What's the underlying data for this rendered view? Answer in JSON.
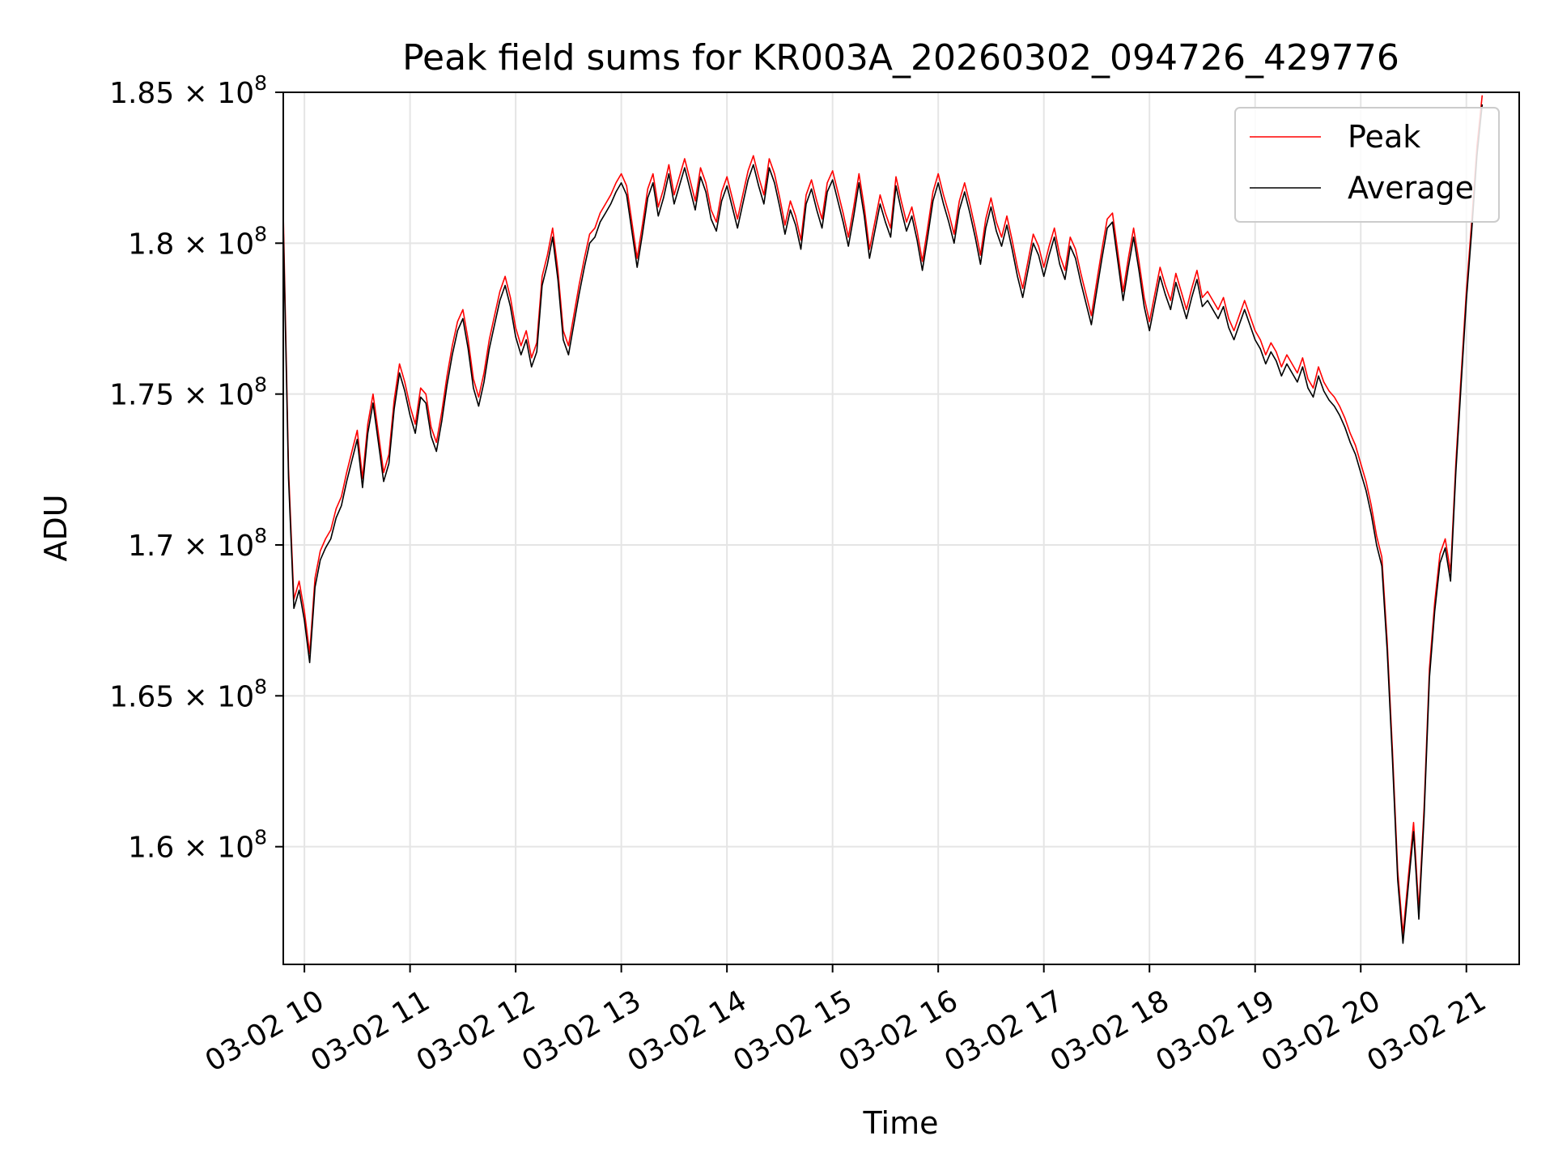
{
  "chart_data": {
    "type": "line",
    "title": "Peak field sums for KR003A_20260302_094726_429776",
    "xlabel": "Time",
    "ylabel": "ADU",
    "xlim": [
      9.8,
      21.5
    ],
    "ylim": [
      156100000,
      185000000
    ],
    "x_ticks": [
      {
        "value": 10,
        "label": "03-02 10"
      },
      {
        "value": 11,
        "label": "03-02 11"
      },
      {
        "value": 12,
        "label": "03-02 12"
      },
      {
        "value": 13,
        "label": "03-02 13"
      },
      {
        "value": 14,
        "label": "03-02 14"
      },
      {
        "value": 15,
        "label": "03-02 15"
      },
      {
        "value": 16,
        "label": "03-02 16"
      },
      {
        "value": 17,
        "label": "03-02 17"
      },
      {
        "value": 18,
        "label": "03-02 18"
      },
      {
        "value": 19,
        "label": "03-02 19"
      },
      {
        "value": 20,
        "label": "03-02 20"
      },
      {
        "value": 21,
        "label": "03-02 21"
      }
    ],
    "y_ticks": [
      {
        "value": 160000000,
        "mantissa": "1.6",
        "exponent": "8"
      },
      {
        "value": 165000000,
        "mantissa": "1.65",
        "exponent": "8"
      },
      {
        "value": 170000000,
        "mantissa": "1.7",
        "exponent": "8"
      },
      {
        "value": 175000000,
        "mantissa": "1.75",
        "exponent": "8"
      },
      {
        "value": 180000000,
        "mantissa": "1.8",
        "exponent": "8"
      },
      {
        "value": 185000000,
        "mantissa": "1.85",
        "exponent": "8"
      }
    ],
    "grid": true,
    "legend_position": "top-right",
    "series": [
      {
        "name": "Peak",
        "color": "#ff0000",
        "x_start": 9.8,
        "x_step": 0.05,
        "values": [
          181000000,
          172500000,
          168200000,
          168800000,
          167800000,
          166400000,
          168900000,
          169800000,
          170200000,
          170500000,
          171200000,
          171600000,
          172400000,
          173100000,
          173800000,
          172200000,
          174000000,
          175000000,
          173700000,
          172400000,
          173000000,
          174800000,
          176000000,
          175400000,
          174600000,
          174000000,
          175200000,
          175000000,
          173900000,
          173400000,
          174400000,
          175600000,
          176600000,
          177400000,
          177800000,
          176800000,
          175500000,
          174900000,
          175700000,
          176800000,
          177600000,
          178400000,
          178900000,
          178200000,
          177200000,
          176600000,
          177100000,
          176200000,
          176700000,
          178900000,
          179600000,
          180500000,
          179100000,
          177100000,
          176600000,
          177600000,
          178600000,
          179500000,
          180300000,
          180500000,
          181000000,
          181300000,
          181600000,
          182000000,
          182300000,
          181900000,
          180700000,
          179500000,
          180600000,
          181800000,
          182300000,
          181200000,
          181800000,
          182600000,
          181600000,
          182200000,
          182800000,
          182100000,
          181400000,
          182500000,
          182000000,
          181100000,
          180700000,
          181700000,
          182200000,
          181500000,
          180800000,
          181600000,
          182400000,
          182900000,
          182200000,
          181600000,
          182800000,
          182300000,
          181500000,
          180600000,
          181400000,
          180900000,
          180100000,
          181600000,
          182100000,
          181400000,
          180800000,
          182000000,
          182400000,
          181700000,
          181000000,
          180200000,
          181200000,
          182300000,
          181200000,
          179800000,
          180700000,
          181600000,
          181000000,
          180500000,
          182200000,
          181400000,
          180700000,
          181200000,
          180400000,
          179400000,
          180500000,
          181700000,
          182300000,
          181600000,
          181000000,
          180300000,
          181400000,
          182000000,
          181300000,
          180500000,
          179600000,
          180800000,
          181500000,
          180700000,
          180200000,
          180900000,
          180100000,
          179200000,
          178500000,
          179400000,
          180300000,
          179900000,
          179200000,
          179900000,
          180500000,
          179600000,
          179100000,
          180200000,
          179800000,
          179000000,
          178300000,
          177600000,
          178700000,
          179800000,
          180800000,
          181000000,
          179700000,
          178400000,
          179500000,
          180500000,
          179400000,
          178200000,
          177400000,
          178300000,
          179200000,
          178600000,
          178100000,
          179000000,
          178400000,
          177800000,
          178500000,
          179100000,
          178200000,
          178400000,
          178100000,
          177800000,
          178200000,
          177500000,
          177100000,
          177600000,
          178100000,
          177600000,
          177100000,
          176800000,
          176300000,
          176700000,
          176400000,
          175900000,
          176300000,
          176000000,
          175700000,
          176200000,
          175500000,
          175200000,
          175900000,
          175400000,
          175100000,
          174900000,
          174600000,
          174200000,
          173700000,
          173300000,
          172700000,
          172100000,
          171300000,
          170300000,
          169600000,
          166800000,
          163200000,
          159200000,
          157100000,
          159000000,
          160800000,
          157900000,
          161300000,
          165900000,
          168100000,
          169700000,
          170200000,
          169100000,
          172700000,
          175600000,
          178400000,
          180700000,
          183200000,
          184900000
        ]
      },
      {
        "name": "Average",
        "color": "#000000",
        "x_start": 9.8,
        "x_step": 0.05,
        "values": [
          180600000,
          172200000,
          167900000,
          168500000,
          167500000,
          166100000,
          168600000,
          169500000,
          169900000,
          170200000,
          170900000,
          171300000,
          172100000,
          172800000,
          173500000,
          171900000,
          173700000,
          174700000,
          173400000,
          172100000,
          172700000,
          174500000,
          175700000,
          175100000,
          174300000,
          173700000,
          174900000,
          174700000,
          173600000,
          173100000,
          174100000,
          175300000,
          176300000,
          177100000,
          177500000,
          176500000,
          175200000,
          174600000,
          175400000,
          176500000,
          177300000,
          178100000,
          178600000,
          177900000,
          176900000,
          176300000,
          176800000,
          175900000,
          176400000,
          178600000,
          179300000,
          180200000,
          178800000,
          176800000,
          176300000,
          177300000,
          178300000,
          179200000,
          180000000,
          180200000,
          180700000,
          181000000,
          181300000,
          181700000,
          182000000,
          181600000,
          180400000,
          179200000,
          180300000,
          181500000,
          182000000,
          180900000,
          181500000,
          182300000,
          181300000,
          181900000,
          182500000,
          181800000,
          181100000,
          182200000,
          181700000,
          180800000,
          180400000,
          181400000,
          181900000,
          181200000,
          180500000,
          181300000,
          182100000,
          182600000,
          181900000,
          181300000,
          182500000,
          182000000,
          181200000,
          180300000,
          181100000,
          180600000,
          179800000,
          181300000,
          181800000,
          181100000,
          180500000,
          181700000,
          182100000,
          181400000,
          180700000,
          179900000,
          180900000,
          182000000,
          180900000,
          179500000,
          180400000,
          181300000,
          180700000,
          180200000,
          181900000,
          181100000,
          180400000,
          180900000,
          180100000,
          179100000,
          180200000,
          181400000,
          182000000,
          181300000,
          180700000,
          180000000,
          181100000,
          181700000,
          181000000,
          180200000,
          179300000,
          180500000,
          181200000,
          180400000,
          179900000,
          180600000,
          179800000,
          178900000,
          178200000,
          179100000,
          180000000,
          179600000,
          178900000,
          179600000,
          180200000,
          179300000,
          178800000,
          179900000,
          179500000,
          178700000,
          178000000,
          177300000,
          178400000,
          179500000,
          180500000,
          180700000,
          179400000,
          178100000,
          179200000,
          180200000,
          179100000,
          177900000,
          177100000,
          178000000,
          178900000,
          178300000,
          177800000,
          178700000,
          178100000,
          177500000,
          178200000,
          178800000,
          177900000,
          178100000,
          177800000,
          177500000,
          177900000,
          177200000,
          176800000,
          177300000,
          177800000,
          177300000,
          176800000,
          176500000,
          176000000,
          176400000,
          176100000,
          175600000,
          176000000,
          175700000,
          175400000,
          175900000,
          175200000,
          174900000,
          175600000,
          175100000,
          174800000,
          174600000,
          174300000,
          173900000,
          173400000,
          173000000,
          172400000,
          171800000,
          171000000,
          170000000,
          169300000,
          166500000,
          162900000,
          158900000,
          156800000,
          158700000,
          160500000,
          157600000,
          161000000,
          165600000,
          167800000,
          169400000,
          169900000,
          168800000,
          172400000,
          175300000,
          178100000,
          180400000,
          182900000,
          184600000
        ]
      }
    ]
  }
}
